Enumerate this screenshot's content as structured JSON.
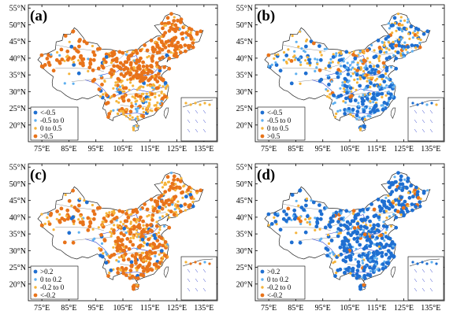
{
  "axes": {
    "lat_ticks": [
      "55°N",
      "50°N",
      "45°N",
      "40°N",
      "35°N",
      "30°N",
      "25°N",
      "20°N"
    ],
    "lon_ticks": [
      "75°E",
      "85°E",
      "95°E",
      "105°E",
      "115°E",
      "125°E",
      "135°E"
    ]
  },
  "colors": {
    "dark_blue": "#1f6fd1",
    "light_blue": "#5fb0f0",
    "light_orange": "#f5b43a",
    "dark_orange": "#e8731a",
    "border": "#222222",
    "river": "#3344cc"
  },
  "panels": [
    {
      "label": "(a)",
      "legend": [
        "<-0.5",
        "-0.5 to 0",
        "0 to 0.5",
        ">0.5"
      ],
      "weights": {
        "west": [
          0.03,
          0.05,
          0.15,
          0.77
        ],
        "north": [
          0.02,
          0.04,
          0.14,
          0.8
        ],
        "south": [
          0.04,
          0.1,
          0.64,
          0.22
        ],
        "tibet": [
          0.2,
          0.3,
          0.3,
          0.2
        ]
      }
    },
    {
      "label": "(b)",
      "legend": [
        "<-0.5",
        "-0.5 to 0",
        "0 to 0.5",
        ">0.5"
      ],
      "weights": {
        "west": [
          0.2,
          0.3,
          0.45,
          0.05
        ],
        "north": [
          0.3,
          0.3,
          0.32,
          0.08
        ],
        "south": [
          0.45,
          0.4,
          0.12,
          0.03
        ],
        "tibet": [
          0.2,
          0.25,
          0.25,
          0.3
        ]
      }
    },
    {
      "label": "(c)",
      "legend": [
        ">0.2",
        "0 to 0.2",
        "-0.2 to 0",
        "<-0.2"
      ],
      "weights": {
        "west": [
          0.05,
          0.05,
          0.3,
          0.6
        ],
        "north": [
          0.05,
          0.05,
          0.4,
          0.5
        ],
        "south": [
          0.03,
          0.04,
          0.28,
          0.65
        ],
        "tibet": [
          0.25,
          0.25,
          0.25,
          0.25
        ]
      }
    },
    {
      "label": "(d)",
      "legend": [
        ">0.2",
        "0 to 0.2",
        "-0.2 to 0",
        "<-0.2"
      ],
      "weights": {
        "west": [
          0.5,
          0.2,
          0.2,
          0.1
        ],
        "north": [
          0.55,
          0.2,
          0.15,
          0.1
        ],
        "south": [
          0.7,
          0.2,
          0.05,
          0.05
        ],
        "tibet": [
          0.5,
          0.2,
          0.2,
          0.1
        ]
      }
    }
  ]
}
